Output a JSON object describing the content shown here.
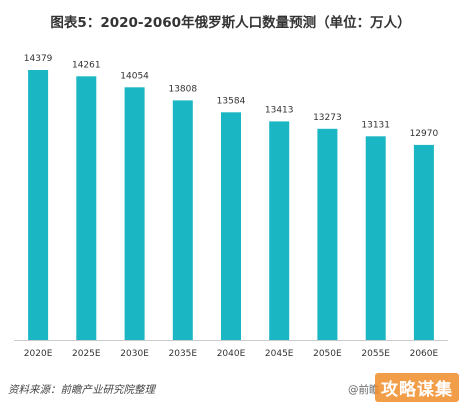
{
  "header": {
    "title": "图表5：2020-2060年俄罗斯人口数量预测（单位：万人）"
  },
  "footer": {
    "source": "资料来源：前瞻产业研究院整理",
    "watermark": "@前瞻",
    "badge": "攻略谋集"
  },
  "colors": {
    "bar": "#1bb6c4",
    "axis": "#cccccc",
    "text": "#333333"
  },
  "chart_data": {
    "type": "bar",
    "title": "图表5：2020-2060年俄罗斯人口数量预测（单位：万人）",
    "xlabel": "",
    "ylabel": "",
    "categories": [
      "2020E",
      "2025E",
      "2030E",
      "2035E",
      "2040E",
      "2045E",
      "2050E",
      "2055E",
      "2060E"
    ],
    "values": [
      14379,
      14261,
      14054,
      13808,
      13584,
      13413,
      13273,
      13131,
      12970
    ],
    "data_labels": [
      "14379",
      "14261",
      "14054",
      "13808",
      "13584",
      "13413",
      "13273",
      "13131",
      "12970"
    ],
    "ylim": [
      9300,
      14379
    ],
    "grid": false,
    "legend": "none"
  }
}
